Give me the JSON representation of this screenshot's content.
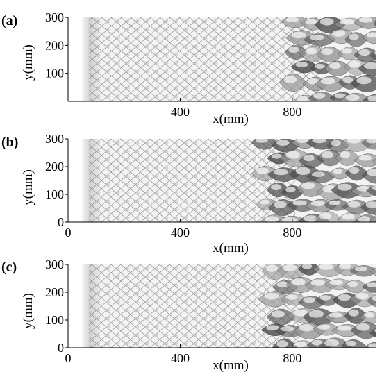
{
  "panels": [
    {
      "label": "(a)",
      "xlabel": "x(mm)",
      "ylabel": "y(mm)",
      "xticks": [
        "400",
        "800"
      ],
      "yticks": [
        "300",
        "200",
        "100"
      ]
    },
    {
      "label": "(b)",
      "xlabel": "x(mm)",
      "ylabel": "y(mm)",
      "xticks": [
        "0",
        "400",
        "800"
      ],
      "yticks": [
        "300",
        "200",
        "100",
        "0"
      ]
    },
    {
      "label": "(c)",
      "xlabel": "x(mm)",
      "ylabel": "y(mm)",
      "xticks": [
        "0",
        "400",
        "800"
      ],
      "yticks": [
        "300",
        "200",
        "100",
        "0"
      ]
    }
  ],
  "axes": {
    "xlim": [
      0,
      1100
    ],
    "ylim": [
      0,
      300
    ],
    "xtick_values": [
      0,
      400,
      800
    ],
    "ytick_values": [
      0,
      100,
      200,
      300
    ]
  },
  "colors": {
    "cell_light": "#f4f4f4",
    "cell_mid": "#c8c8c8",
    "cell_dark": "#5a5a5a",
    "axis": "#000000"
  }
}
